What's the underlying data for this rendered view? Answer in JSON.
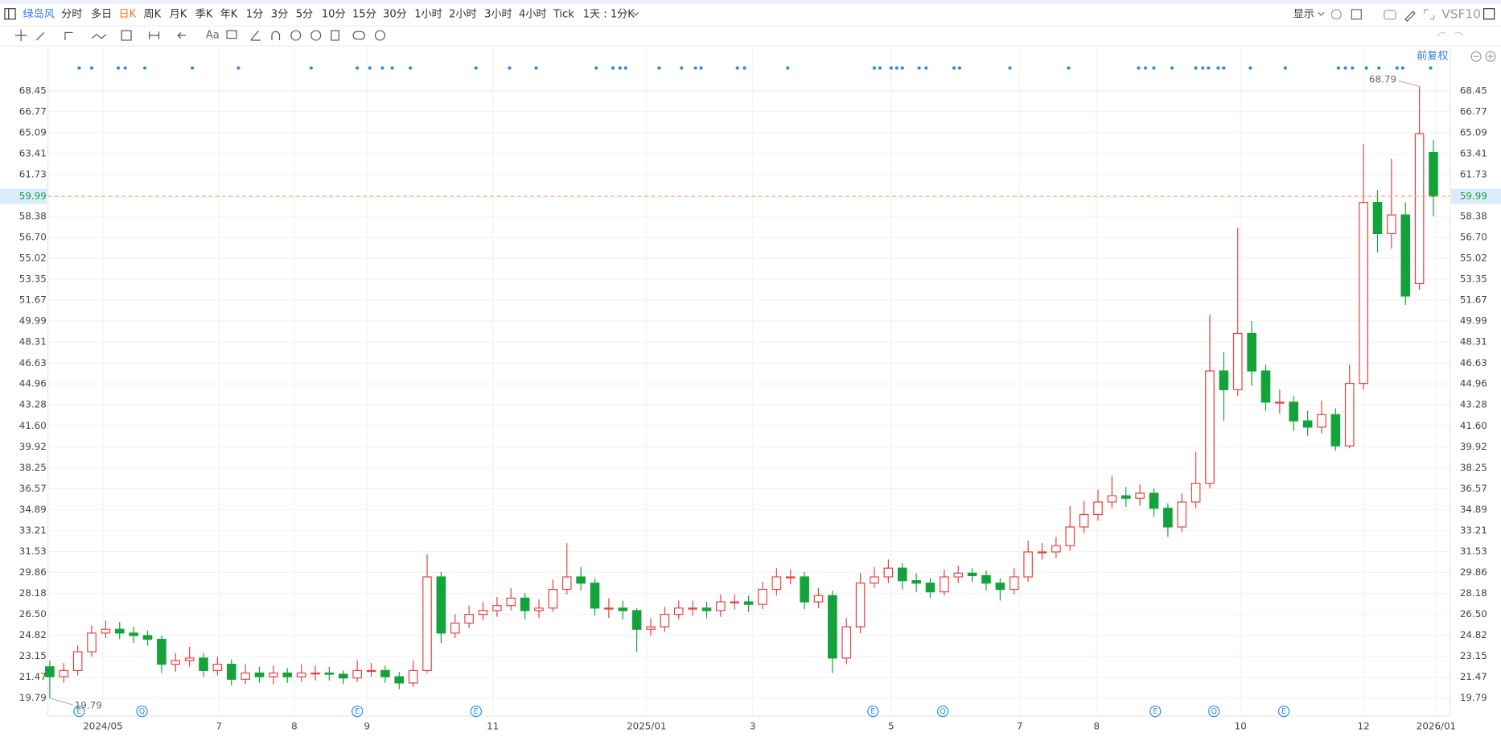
{
  "toolbar": {
    "symbol": "绿岛风",
    "periods": [
      "分时",
      "多日",
      "日K",
      "周K",
      "月K",
      "季K",
      "年K",
      "1分",
      "3分",
      "5分",
      "10分",
      "15分",
      "30分",
      "1小时",
      "2小时",
      "3小时",
      "4小时",
      "Tick"
    ],
    "active_period_index": 2,
    "interval": "1天 : 1分K",
    "display": "显示",
    "vs": "VS",
    "f10": "F10",
    "text_tool": "Aa",
    "adjust": "前复权"
  },
  "chart_data": {
    "type": "candlestick",
    "up_color": "#e8413f",
    "down_color": "#14a33a",
    "price_line_color": "#f5a06a",
    "signal_color": "#2b8de8",
    "grid": true,
    "xlim": [
      0,
      100
    ],
    "ylim": [
      18.5,
      71.5
    ],
    "xticks": [
      {
        "value": 3.8,
        "label": "2024/05"
      },
      {
        "value": 12.1,
        "label": "7"
      },
      {
        "value": 17.5,
        "label": "8"
      },
      {
        "value": 22.7,
        "label": "9"
      },
      {
        "value": 31.7,
        "label": "11"
      },
      {
        "value": 42.7,
        "label": "2025/01"
      },
      {
        "value": 50.3,
        "label": "3"
      },
      {
        "value": 60.2,
        "label": "5"
      },
      {
        "value": 69.4,
        "label": "7"
      },
      {
        "value": 74.9,
        "label": "8"
      },
      {
        "value": 85.2,
        "label": "10"
      },
      {
        "value": 94.0,
        "label": "12"
      },
      {
        "value": 99.2,
        "label": "2026/01"
      }
    ],
    "yticks": [
      19.79,
      21.47,
      23.15,
      24.82,
      {
        "value": 26.5,
        "label": "26.50"
      },
      28.18,
      29.86,
      31.53,
      33.21,
      34.89,
      36.57,
      38.25,
      39.92,
      {
        "value": 41.6,
        "label": "41.60"
      },
      43.28,
      44.96,
      46.63,
      48.31,
      49.99,
      51.67,
      53.35,
      55.02,
      {
        "value": 56.7,
        "label": "56.70"
      },
      58.38,
      61.73,
      63.41,
      65.09,
      66.77,
      68.45
    ],
    "open": [
      22.3,
      21.5,
      22,
      23.5,
      25,
      25.3,
      25,
      24.8,
      24.5,
      22.5,
      22.8,
      23,
      22,
      22.5,
      21.3,
      21.8,
      21.5,
      21.8,
      21.5,
      21.8,
      21.8,
      21.7,
      21.4,
      22,
      22,
      21.5,
      21,
      22,
      29.5,
      25,
      25.8,
      26.5,
      26.8,
      27.2,
      27.8,
      26.8,
      27,
      28.5,
      29.5,
      29,
      27,
      27,
      26.8,
      25.3,
      25.5,
      26.5,
      27,
      27,
      26.8,
      27.5,
      27.5,
      27.3,
      28.5,
      29.5,
      29.5,
      27.5,
      28,
      23,
      25.5,
      29,
      29.5,
      30.2,
      29.2,
      29,
      28.3,
      29.5,
      29.8,
      29.6,
      29,
      28.5,
      29.5,
      31.5,
      31.5,
      32,
      33.5,
      34.5,
      35.5,
      36,
      35.8,
      36.2,
      35,
      33.5,
      35.5,
      37,
      46,
      44.5,
      49,
      46,
      43.5,
      43.5,
      42,
      41.5,
      42.5,
      40,
      45,
      59.5,
      57,
      58.5,
      53,
      63.5
    ],
    "high": [
      22.8,
      22.6,
      24.0,
      25.6,
      26.0,
      25.9,
      25.5,
      25.2,
      24.8,
      23.4,
      23.9,
      23.4,
      23.1,
      22.9,
      22.5,
      22.3,
      22.4,
      22.2,
      22.5,
      22.4,
      22.3,
      22.0,
      22.8,
      22.6,
      22.4,
      21.9,
      22.8,
      31.3,
      29.9,
      26.5,
      27.2,
      27.5,
      27.9,
      28.6,
      28.2,
      27.7,
      29.3,
      32.2,
      30.3,
      29.4,
      27.8,
      27.6,
      27.0,
      26.2,
      27.1,
      27.6,
      27.6,
      27.5,
      28.1,
      28.1,
      28.0,
      29.1,
      30.2,
      30.1,
      29.9,
      28.6,
      28.4,
      26.2,
      29.8,
      30.3,
      30.9,
      30.6,
      29.8,
      29.4,
      30.1,
      30.4,
      30.2,
      30.0,
      29.4,
      30.2,
      32.4,
      32.2,
      32.7,
      35.2,
      35.6,
      36.5,
      37.6,
      36.7,
      36.9,
      36.6,
      35.4,
      36.2,
      39.5,
      50.5,
      47.5,
      57.5,
      50.0,
      46.5,
      44.5,
      44.0,
      42.8,
      43.6,
      43.0,
      46.5,
      64.2,
      60.5,
      63.0,
      59.5,
      68.79,
      64.5
    ],
    "low": [
      19.79,
      21.0,
      21.6,
      23.1,
      24.6,
      24.5,
      24.2,
      24.0,
      21.8,
      21.9,
      22.3,
      21.5,
      21.6,
      20.8,
      20.9,
      21.0,
      20.9,
      21.0,
      21.1,
      21.2,
      21.2,
      20.9,
      21.1,
      21.5,
      21.0,
      20.5,
      20.7,
      21.8,
      24.2,
      24.6,
      25.4,
      26.0,
      26.3,
      26.8,
      26.1,
      26.2,
      26.7,
      28.1,
      28.4,
      26.4,
      26.2,
      26.1,
      23.5,
      24.8,
      25.1,
      26.1,
      26.4,
      26.2,
      26.3,
      26.9,
      26.7,
      26.9,
      28.0,
      28.9,
      26.9,
      27.0,
      21.8,
      22.5,
      25.0,
      28.6,
      29.0,
      28.5,
      28.3,
      27.8,
      28.0,
      29.0,
      29.1,
      28.4,
      27.6,
      28.1,
      29.1,
      30.9,
      31.0,
      31.6,
      33.0,
      34.0,
      35.0,
      35.1,
      35.2,
      34.3,
      32.7,
      33.1,
      35.0,
      36.6,
      42.0,
      44.0,
      44.8,
      42.8,
      42.6,
      41.2,
      40.8,
      41.0,
      39.6,
      39.8,
      44.5,
      55.5,
      55.8,
      51.3,
      52.5,
      58.4
    ],
    "close": [
      21.5,
      22,
      23.5,
      25,
      25.3,
      25,
      24.8,
      24.5,
      22.5,
      22.8,
      23,
      22,
      22.5,
      21.3,
      21.8,
      21.5,
      21.8,
      21.5,
      21.8,
      21.8,
      21.7,
      21.4,
      22,
      22,
      21.5,
      21,
      22,
      29.5,
      25,
      25.8,
      26.5,
      26.8,
      27.2,
      27.8,
      26.8,
      27,
      28.5,
      29.5,
      29,
      27,
      27,
      26.8,
      25.3,
      25.5,
      26.5,
      27,
      27,
      26.8,
      27.5,
      27.5,
      27.3,
      28.5,
      29.5,
      29.5,
      27.5,
      28,
      23,
      25.5,
      29,
      29.5,
      30.2,
      29.2,
      29,
      28.3,
      29.5,
      29.8,
      29.6,
      29,
      28.5,
      29.5,
      31.5,
      31.5,
      32,
      33.5,
      34.5,
      35.5,
      36,
      35.8,
      36.2,
      35,
      33.5,
      35.5,
      37,
      46,
      44.5,
      49,
      46,
      43.5,
      43.5,
      42,
      41.5,
      42.5,
      40,
      45,
      59.5,
      57,
      58.5,
      52,
      65,
      59.99
    ],
    "signals": [
      2.1,
      3.0,
      4.9,
      5.4,
      6.8,
      10.2,
      13.5,
      18.7,
      22.0,
      22.9,
      23.8,
      24.5,
      25.8,
      30.5,
      32.9,
      34.8,
      39.1,
      40.3,
      40.8,
      41.2,
      43.6,
      45.2,
      46.2,
      46.6,
      49.2,
      49.7,
      52.8,
      59.0,
      59.4,
      60.2,
      60.6,
      61.0,
      62.2,
      62.7,
      64.7,
      65.1,
      68.7,
      72.9,
      77.9,
      78.4,
      79.0,
      80.3,
      82.0,
      82.5,
      82.9,
      83.6,
      84.0,
      85.9,
      88.4,
      92.2,
      92.7,
      93.2,
      94.2,
      95.1,
      96.4,
      96.8,
      98.8
    ],
    "events": [
      {
        "x": 2.1,
        "label": "E"
      },
      {
        "x": 6.6,
        "label": "Q"
      },
      {
        "x": 22.0,
        "label": "E"
      },
      {
        "x": 30.5,
        "label": "E"
      },
      {
        "x": 58.9,
        "label": "E"
      },
      {
        "x": 63.9,
        "label": "Q"
      },
      {
        "x": 79.1,
        "label": "E"
      },
      {
        "x": 83.3,
        "label": "Q"
      },
      {
        "x": 88.3,
        "label": "E"
      }
    ]
  }
}
